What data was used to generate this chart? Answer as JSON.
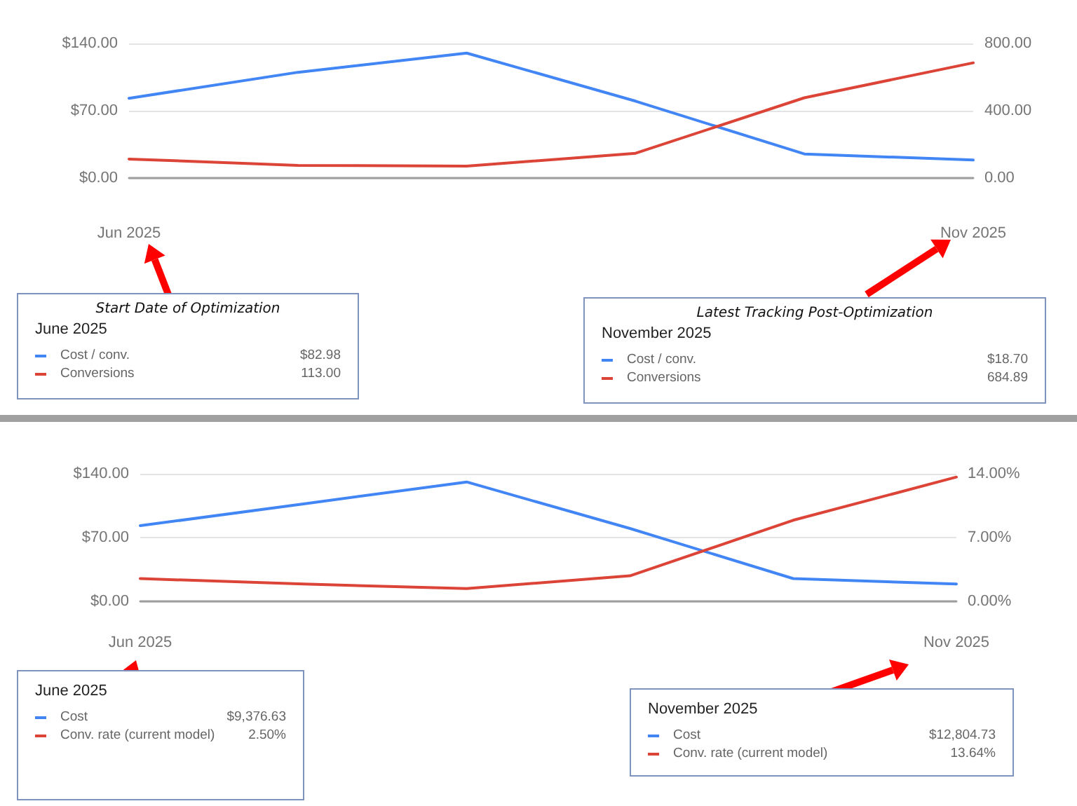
{
  "chart_data": [
    {
      "type": "line",
      "categories": [
        "Jun 2025",
        null,
        null,
        null,
        null,
        "Nov 2025"
      ],
      "series": [
        {
          "name": "Cost / conv.",
          "color": "#4285f4",
          "values": [
            82.98,
            110,
            130,
            80,
            25,
            18.7
          ]
        },
        {
          "name": "Conversions",
          "color": "#db4437",
          "axis": "y2",
          "values": [
            113,
            75,
            71,
            147,
            477,
            684.89
          ]
        }
      ],
      "ylim": [
        0,
        140
      ],
      "yticks": [
        {
          "value": 0,
          "label": "$0.00"
        },
        {
          "value": 70,
          "label": "$70.00"
        },
        {
          "value": 140,
          "label": "$140.00"
        }
      ],
      "y2lim": [
        0,
        800
      ],
      "y2ticks": [
        {
          "value": 0,
          "label": "0.00"
        },
        {
          "value": 400,
          "label": "400.00"
        },
        {
          "value": 800,
          "label": "800.00"
        }
      ],
      "grid": "y",
      "marker": "none",
      "line_style": "solid",
      "legend": "bottom",
      "annotations": [
        "Start Date of Optimization",
        "June 2025",
        "$82.98",
        "113.00",
        "Latest Tracking Post-Optimization",
        "November 2025",
        "$18.70",
        "684.89"
      ]
    },
    {
      "type": "line",
      "categories": [
        "Jun 2025",
        null,
        null,
        null,
        null,
        "Nov 2025"
      ],
      "series": [
        {
          "name": "Cost",
          "color": "#4285f4",
          "values": [
            83,
            107,
            131,
            80,
            25,
            19
          ]
        },
        {
          "name": "Conv. rate (current model)",
          "color": "#db4437",
          "axis": "y2",
          "values": [
            2.5,
            1.9,
            1.4,
            2.8,
            8.9,
            13.64
          ]
        }
      ],
      "ylim": [
        0,
        140
      ],
      "yticks": [
        {
          "value": 0,
          "label": "$0.00"
        },
        {
          "value": 70,
          "label": "$70.00"
        },
        {
          "value": 140,
          "label": "$140.00"
        }
      ],
      "y2lim": [
        0,
        14
      ],
      "y2ticks": [
        {
          "value": 0,
          "label": "0.00%"
        },
        {
          "value": 7,
          "label": "7.00%"
        },
        {
          "value": 14,
          "label": "14.00%"
        }
      ],
      "grid": "y",
      "marker": "none",
      "line_style": "solid",
      "legend": "bottom",
      "annotations": [
        "June 2025",
        "$9,376.63",
        "2.50%",
        "November 2025",
        "$12,804.73",
        "13.64%"
      ]
    }
  ]
}
